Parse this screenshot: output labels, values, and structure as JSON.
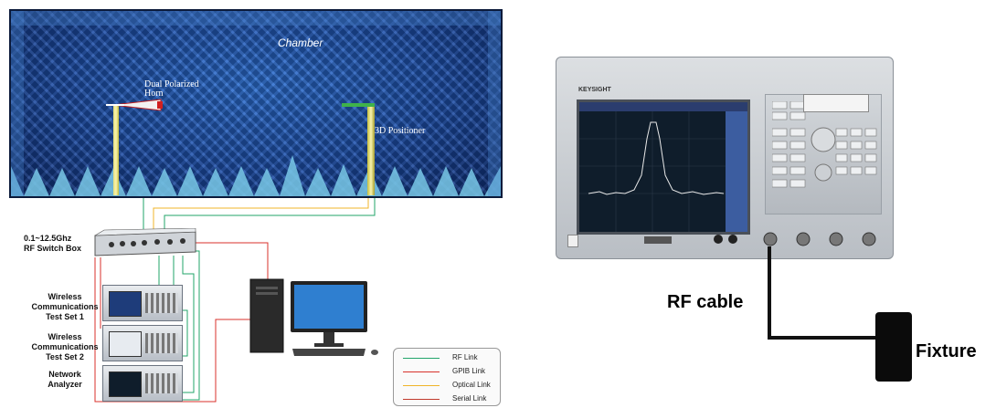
{
  "chamber": {
    "title": "Chamber",
    "horn_label": "Dual Polarized\nHorn",
    "positioner_label": "3D Positioner"
  },
  "switch_box": {
    "label": "0.1~12.5Ghz\nRF Switch Box"
  },
  "instruments": [
    {
      "label": "Wireless\nCommunications\nTest Set 1"
    },
    {
      "label": "Wireless\nCommunications\nTest Set 2"
    },
    {
      "label": "Network\nAnalyzer"
    }
  ],
  "legend": [
    {
      "label": "RF Link",
      "color": "#22a46a"
    },
    {
      "label": "GPIB Link",
      "color": "#d8312b"
    },
    {
      "label": "Optical Link",
      "color": "#f0b429"
    },
    {
      "label": "Serial Link",
      "color": "#c0392b"
    }
  ],
  "vna": {
    "brand": "KEYSIGHT"
  },
  "labels": {
    "rf_cable": "RF cable",
    "fixture": "Fixture"
  }
}
